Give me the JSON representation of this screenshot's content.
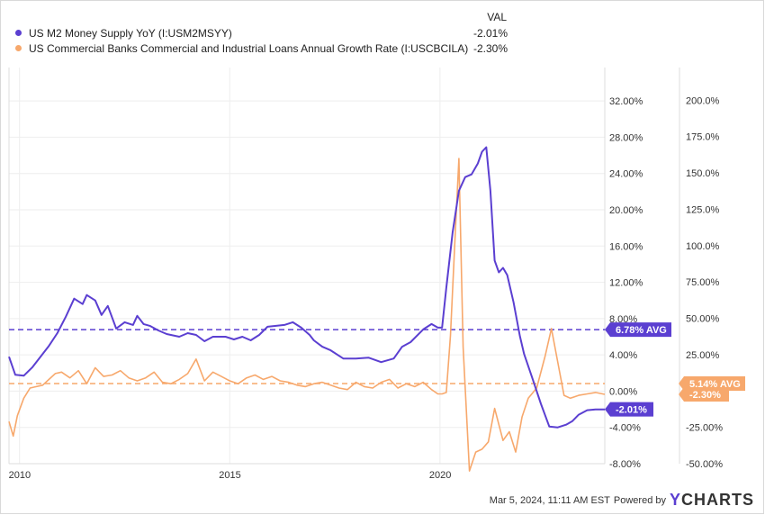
{
  "legend": {
    "value_header": "VAL",
    "items": [
      {
        "label": "US M2 Money Supply YoY (I:USM2MSYY)",
        "value": "-2.01%",
        "color": "#5b3fd1"
      },
      {
        "label": "US Commercial Banks Commercial and Industrial Loans Annual Growth Rate (I:USCBCILA)",
        "value": "-2.30%",
        "color": "#f7a86c"
      }
    ]
  },
  "chart_data": {
    "type": "line",
    "x_ticks": [
      "2010",
      "2015",
      "2020"
    ],
    "x_range": [
      2009.75,
      2023.92
    ],
    "grid": true,
    "y_left": {
      "ticks": [
        "32.00%",
        "28.00%",
        "24.00%",
        "20.00%",
        "16.00%",
        "12.00%",
        "8.00%",
        "4.00%",
        "0.00%",
        "-4.00%",
        "-8.00%"
      ],
      "range": [
        -8,
        34
      ]
    },
    "y_right": {
      "ticks": [
        "200.0%",
        "175.0%",
        "150.0%",
        "125.0%",
        "100.0%",
        "75.00%",
        "50.00%",
        "25.00%",
        "0.00%",
        "-25.00%",
        "-50.00%"
      ],
      "range": [
        -50,
        212
      ]
    },
    "series": [
      {
        "name": "US M2 Money Supply YoY (I:USM2MSYY)",
        "axis": "left",
        "color": "#5b3fd1",
        "average": 6.78,
        "average_label": "6.78% AVG",
        "last_label": "-2.01%",
        "x": [
          2009.75,
          2009.9,
          2010.1,
          2010.3,
          2010.5,
          2010.7,
          2010.9,
          2011.1,
          2011.3,
          2011.5,
          2011.6,
          2011.8,
          2011.95,
          2012.1,
          2012.3,
          2012.5,
          2012.7,
          2012.8,
          2012.95,
          2013.1,
          2013.3,
          2013.5,
          2013.8,
          2014.0,
          2014.2,
          2014.4,
          2014.6,
          2014.9,
          2015.1,
          2015.3,
          2015.5,
          2015.7,
          2015.9,
          2016.1,
          2016.3,
          2016.5,
          2016.7,
          2016.9,
          2017.0,
          2017.2,
          2017.4,
          2017.7,
          2018.0,
          2018.3,
          2018.6,
          2018.9,
          2019.1,
          2019.3,
          2019.6,
          2019.8,
          2019.95,
          2020.05,
          2020.15,
          2020.3,
          2020.45,
          2020.6,
          2020.75,
          2020.9,
          2021.0,
          2021.1,
          2021.2,
          2021.3,
          2021.4,
          2021.5,
          2021.6,
          2021.75,
          2021.9,
          2022.0,
          2022.2,
          2022.4,
          2022.6,
          2022.8,
          2023.0,
          2023.15,
          2023.3,
          2023.5,
          2023.7,
          2023.92
        ],
        "y": [
          3.8,
          1.8,
          1.7,
          2.6,
          3.8,
          5.0,
          6.4,
          8.2,
          10.2,
          9.6,
          10.6,
          10.0,
          8.4,
          9.4,
          6.9,
          7.6,
          7.3,
          8.3,
          7.4,
          7.2,
          6.7,
          6.3,
          6.0,
          6.4,
          6.2,
          5.5,
          6.0,
          6.0,
          5.7,
          6.0,
          5.6,
          6.2,
          7.1,
          7.2,
          7.3,
          7.6,
          7.0,
          6.2,
          5.6,
          4.9,
          4.5,
          3.6,
          3.6,
          3.7,
          3.2,
          3.6,
          4.9,
          5.4,
          6.8,
          7.4,
          7.0,
          7.0,
          11.4,
          17.5,
          22.1,
          23.6,
          23.9,
          25.1,
          26.4,
          26.9,
          22.1,
          14.4,
          13.1,
          13.6,
          12.8,
          9.8,
          6.1,
          4.1,
          1.4,
          -1.4,
          -3.9,
          -4.0,
          -3.7,
          -3.3,
          -2.6,
          -2.1,
          -2.01,
          -2.01
        ]
      },
      {
        "name": "US Commercial Banks Commercial and Industrial Loans Annual Growth Rate (I:USCBCILA)",
        "axis": "right",
        "color": "#f7a86c",
        "average": 5.14,
        "average_label": "5.14% AVG",
        "last_label": "-2.30%",
        "x": [
          2009.75,
          2009.85,
          2009.95,
          2010.1,
          2010.25,
          2010.4,
          2010.55,
          2010.7,
          2010.85,
          2011.0,
          2011.2,
          2011.4,
          2011.6,
          2011.8,
          2012.0,
          2012.2,
          2012.4,
          2012.6,
          2012.8,
          2013.0,
          2013.2,
          2013.4,
          2013.6,
          2013.8,
          2014.0,
          2014.2,
          2014.4,
          2014.6,
          2014.8,
          2015.0,
          2015.2,
          2015.4,
          2015.6,
          2015.8,
          2016.0,
          2016.2,
          2016.4,
          2016.6,
          2016.8,
          2017.0,
          2017.2,
          2017.4,
          2017.6,
          2017.8,
          2018.0,
          2018.2,
          2018.4,
          2018.6,
          2018.8,
          2019.0,
          2019.2,
          2019.4,
          2019.6,
          2019.8,
          2019.95,
          2020.05,
          2020.15,
          2020.25,
          2020.35,
          2020.45,
          2020.55,
          2020.7,
          2020.85,
          2021.0,
          2021.15,
          2021.3,
          2021.5,
          2021.65,
          2021.8,
          2021.95,
          2022.1,
          2022.3,
          2022.5,
          2022.65,
          2022.8,
          2022.95,
          2023.1,
          2023.3,
          2023.5,
          2023.7,
          2023.92
        ],
        "y": [
          -21,
          -31,
          -17,
          -5,
          2,
          3,
          4,
          8,
          12,
          13,
          9,
          14,
          5,
          16,
          10,
          11,
          14,
          9,
          7,
          9,
          13,
          6,
          5,
          8,
          12,
          22,
          7,
          13,
          10,
          7,
          5,
          9,
          11,
          8,
          10,
          7,
          6,
          4,
          3,
          5,
          6,
          4,
          2,
          1,
          6,
          3,
          2,
          6,
          8,
          2,
          5,
          3,
          6,
          1,
          -2,
          -2,
          -1,
          38,
          100,
          160,
          30,
          -55,
          -42,
          -40,
          -35,
          -12,
          -34,
          -28,
          -42,
          -18,
          -5,
          2,
          24,
          43,
          20,
          -3,
          -5,
          -3,
          -2,
          -1,
          -2.3
        ]
      }
    ]
  },
  "footer": {
    "timestamp": "Mar 5, 2024, 11:11 AM EST",
    "powered_by": "Powered by",
    "brand_y": "Y",
    "brand_rest": "CHARTS"
  }
}
